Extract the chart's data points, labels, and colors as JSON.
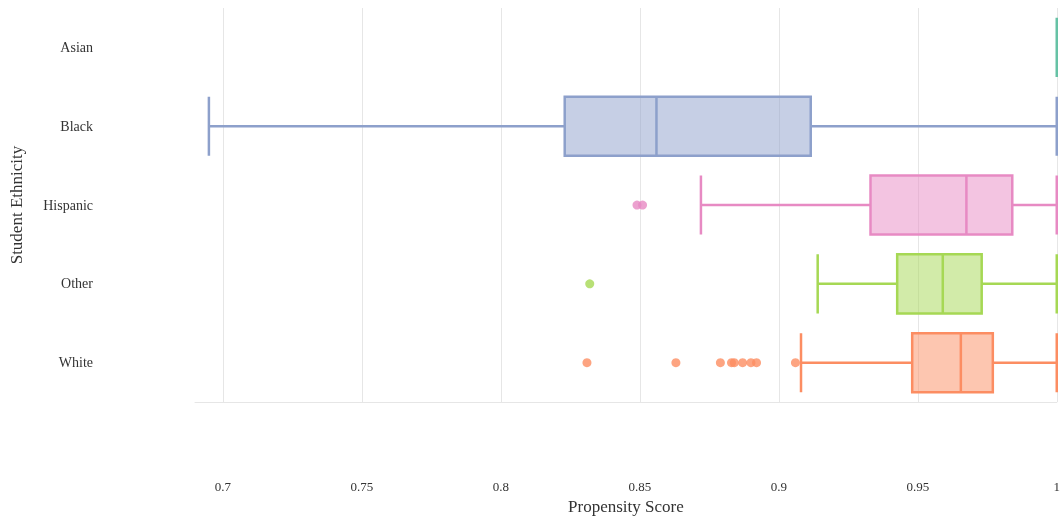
{
  "chart_data": {
    "type": "box",
    "orientation": "horizontal",
    "xlabel": "Propensity Score",
    "ylabel": "Student Ethnicity",
    "categories": [
      "Asian",
      "Black",
      "Hispanic",
      "Other",
      "White"
    ],
    "colors": [
      "#66c2a5",
      "#8da0cb",
      "#e78ac3",
      "#a6d854",
      "#fc8d62"
    ],
    "boxes": [
      {
        "low": 1,
        "q1": 1,
        "median": 1,
        "q3": 1,
        "high": 1
      },
      {
        "low": 0.695,
        "q1": 0.823,
        "median": 0.856,
        "q3": 0.9115,
        "high": 1
      },
      {
        "low": 0.872,
        "q1": 0.933,
        "median": 0.9675,
        "q3": 0.984,
        "high": 1,
        "outliers": [
          0.849,
          0.851
        ]
      },
      {
        "low": 0.914,
        "q1": 0.9426,
        "median": 0.959,
        "q3": 0.973,
        "high": 1,
        "outliers": [
          0.832
        ]
      },
      {
        "low": 0.908,
        "q1": 0.948,
        "median": 0.9655,
        "q3": 0.977,
        "high": 1,
        "outliers": [
          0.831,
          0.863,
          0.879,
          0.883,
          0.884,
          0.887,
          0.89,
          0.892,
          0.906
        ]
      }
    ],
    "xlim": [
      0.69,
      1
    ],
    "xticks": [
      0.7,
      0.75,
      0.8,
      0.85,
      0.9,
      0.95,
      1
    ],
    "grid": "x"
  }
}
